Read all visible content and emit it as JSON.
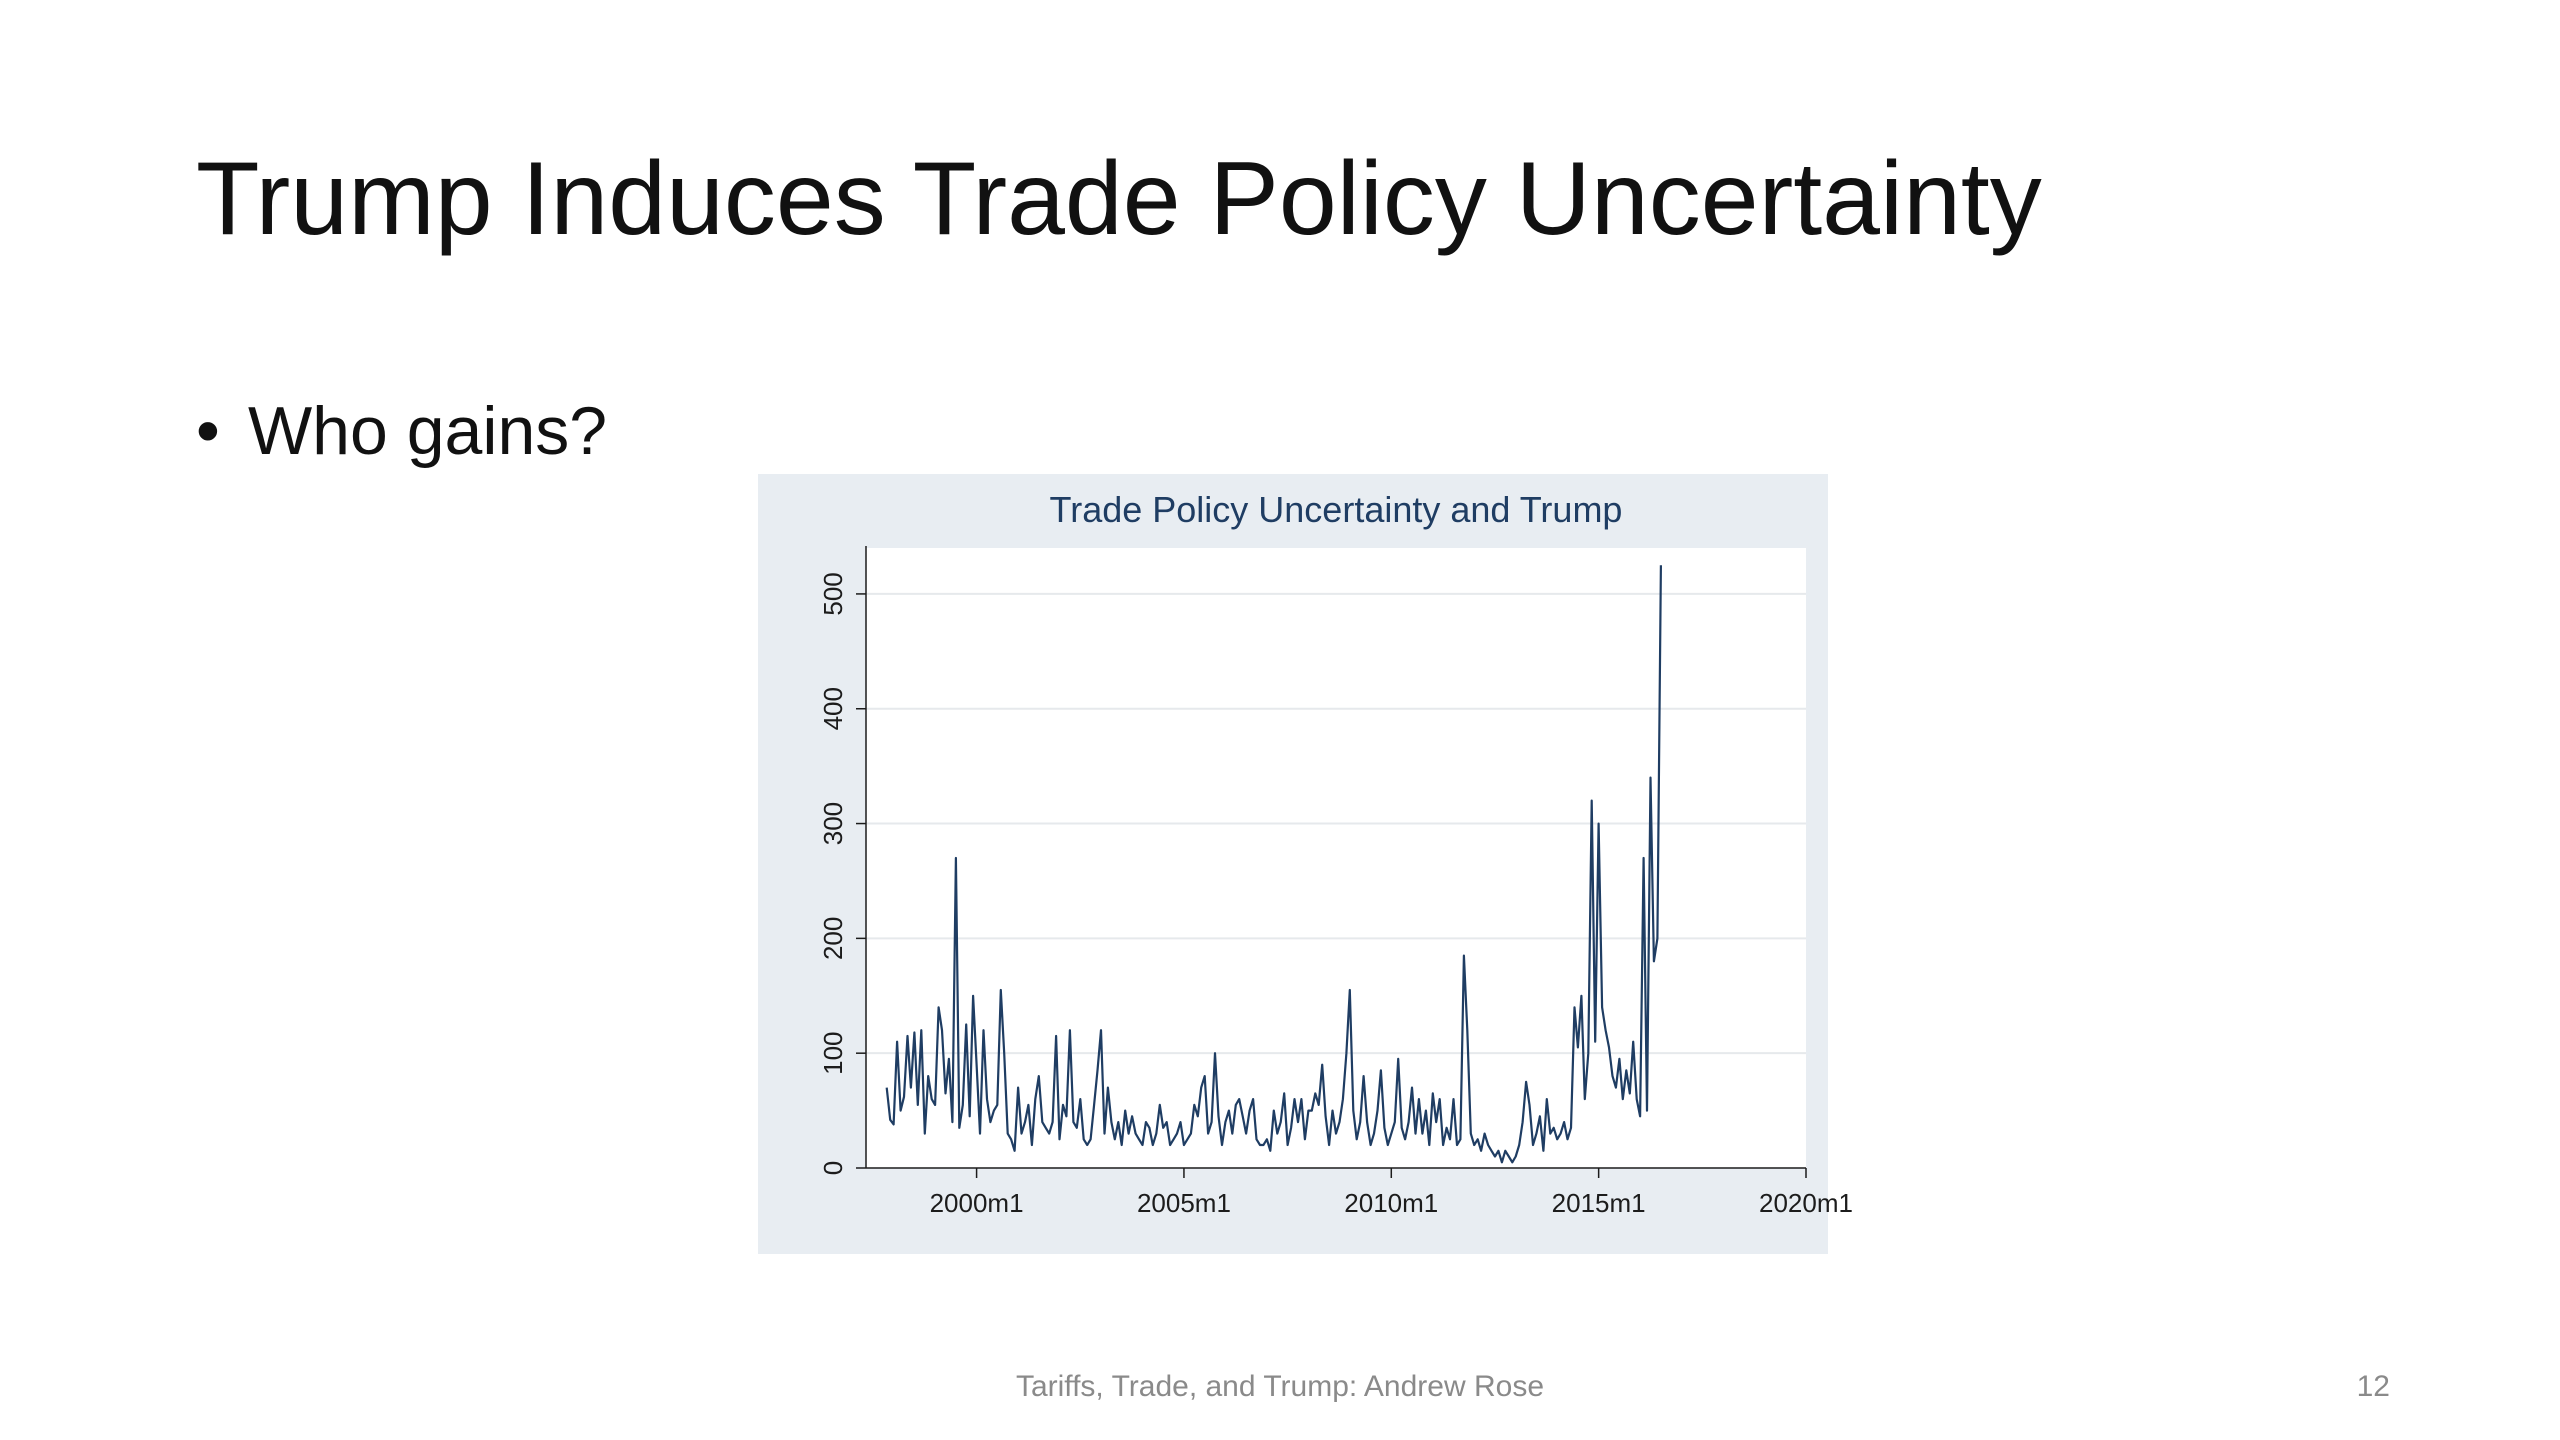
{
  "slide": {
    "title": "Trump Induces Trade Policy Uncertainty",
    "bullet_marker": "•",
    "bullet": "Who gains?",
    "footer": "Tariffs, Trade, and Trump: Andrew Rose",
    "page_number": "12"
  },
  "chart_data": {
    "type": "line",
    "title": "Trade Policy Uncertainty and Trump",
    "xlabel": "",
    "ylabel": "",
    "x_ticks": [
      "2000m1",
      "2005m1",
      "2010m1",
      "2015m1",
      "2020m1"
    ],
    "y_ticks": [
      "0",
      "100",
      "200",
      "300",
      "400",
      "500"
    ],
    "xlim": [
      "1997m5",
      "2020m1"
    ],
    "ylim": [
      0,
      540
    ],
    "grid": true,
    "legend": "none",
    "line_color": "#1f3d63",
    "background_color": "#e8edf2",
    "plot_color": "#ffffff",
    "x_start": "1997m11",
    "frequency": "monthly",
    "series": [
      {
        "values": [
          70,
          42,
          38,
          110,
          50,
          62,
          115,
          70,
          118,
          55,
          120,
          30,
          80,
          60,
          55,
          140,
          120,
          65,
          95,
          40,
          270,
          35,
          55,
          125,
          45,
          150,
          90,
          30,
          120,
          60,
          40,
          50,
          55,
          155,
          100,
          30,
          25,
          15,
          70,
          30,
          40,
          55,
          20,
          60,
          80,
          40,
          35,
          30,
          40,
          115,
          25,
          55,
          45,
          120,
          40,
          35,
          60,
          25,
          20,
          25,
          55,
          85,
          120,
          30,
          70,
          40,
          25,
          40,
          20,
          50,
          30,
          45,
          30,
          25,
          20,
          40,
          35,
          20,
          30,
          55,
          35,
          40,
          20,
          25,
          30,
          40,
          20,
          25,
          30,
          55,
          45,
          70,
          80,
          30,
          40,
          100,
          45,
          20,
          40,
          50,
          30,
          55,
          60,
          45,
          30,
          50,
          60,
          25,
          20,
          20,
          25,
          15,
          50,
          30,
          40,
          65,
          20,
          35,
          60,
          40,
          60,
          25,
          50,
          50,
          65,
          55,
          90,
          45,
          20,
          50,
          30,
          40,
          60,
          100,
          155,
          50,
          25,
          40,
          80,
          40,
          20,
          30,
          50,
          85,
          35,
          20,
          30,
          40,
          95,
          35,
          25,
          40,
          70,
          30,
          60,
          30,
          50,
          20,
          65,
          40,
          60,
          20,
          35,
          25,
          60,
          20,
          25,
          185,
          120,
          30,
          20,
          25,
          15,
          30,
          20,
          15,
          10,
          15,
          5,
          15,
          10,
          5,
          10,
          20,
          40,
          75,
          55,
          20,
          30,
          45,
          15,
          60,
          30,
          35,
          25,
          30,
          40,
          25,
          35,
          140,
          105,
          150,
          60,
          100,
          320,
          110,
          300,
          140,
          120,
          105,
          80,
          70,
          95,
          60,
          85,
          65,
          110,
          60,
          45,
          270,
          50,
          340,
          180,
          200,
          525
        ]
      }
    ]
  }
}
